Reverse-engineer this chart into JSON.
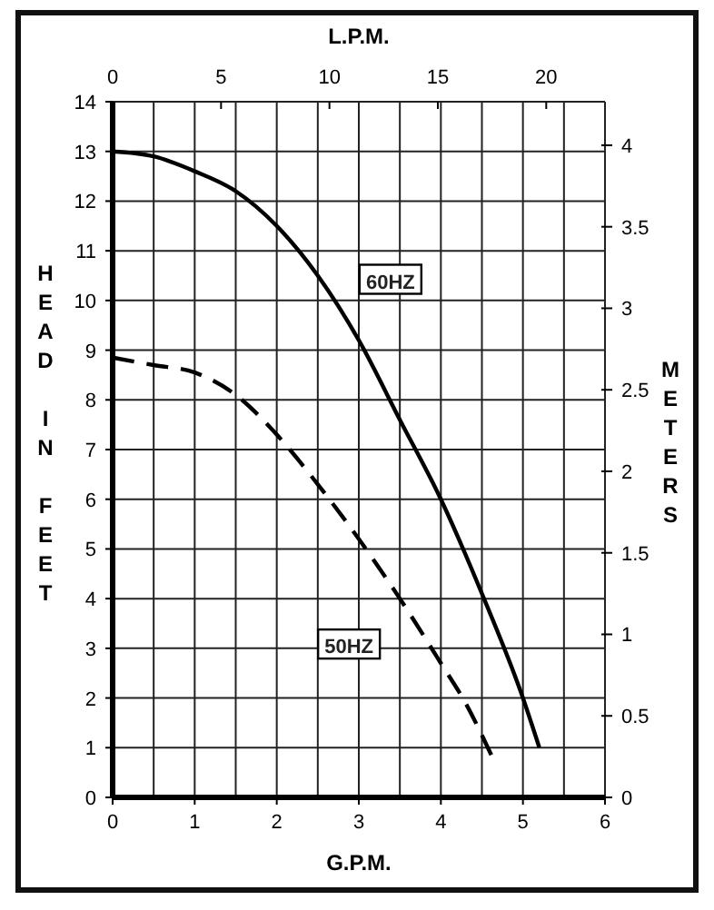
{
  "chart_data": {
    "type": "line",
    "xlabel": "G.P.M.",
    "x2label": "L.P.M.",
    "ylabel": "HEAD IN FEET",
    "y2label": "METERS",
    "xlim": [
      0,
      6
    ],
    "xticks": [
      0,
      {
        "value": 0.5,
        "label": null
      },
      1,
      {
        "value": 1.5,
        "label": null
      },
      2,
      {
        "value": 2.5,
        "label": null
      },
      3,
      {
        "value": 3.5,
        "label": null
      },
      4,
      {
        "value": 4.5,
        "label": null
      },
      5,
      {
        "value": 5.5,
        "label": null
      },
      6
    ],
    "ylim": [
      0,
      14
    ],
    "yticks": [
      0,
      1,
      2,
      3,
      4,
      5,
      6,
      7,
      8,
      9,
      10,
      11,
      12,
      13,
      14
    ],
    "x2lim": [
      0,
      22.71
    ],
    "x2ticks": [
      0,
      5,
      10,
      15,
      20
    ],
    "y2lim": [
      0,
      4.267
    ],
    "y2ticks": [
      0,
      0.5,
      1,
      1.5,
      2,
      2.5,
      3,
      3.5,
      4
    ],
    "grid": true,
    "marker": "none",
    "series": [
      {
        "name": "60HZ",
        "color": "#000000",
        "line_style": "solid",
        "x": [
          0,
          0.5,
          1,
          1.5,
          2,
          2.5,
          3,
          3.5,
          4,
          4.5,
          5,
          5.2
        ],
        "values": [
          13,
          12.9,
          12.6,
          12.2,
          11.5,
          10.5,
          9.2,
          7.6,
          6,
          4.1,
          2,
          1
        ]
      },
      {
        "name": "50HZ",
        "color": "#000000",
        "line_style": "dashed",
        "x": [
          0,
          0.5,
          1,
          1.5,
          2,
          2.5,
          3,
          3.5,
          4,
          4.3,
          4.63
        ],
        "values": [
          8.85,
          8.7,
          8.55,
          8.1,
          7.3,
          6.3,
          5.2,
          4,
          2.7,
          1.9,
          0.8
        ]
      }
    ]
  }
}
